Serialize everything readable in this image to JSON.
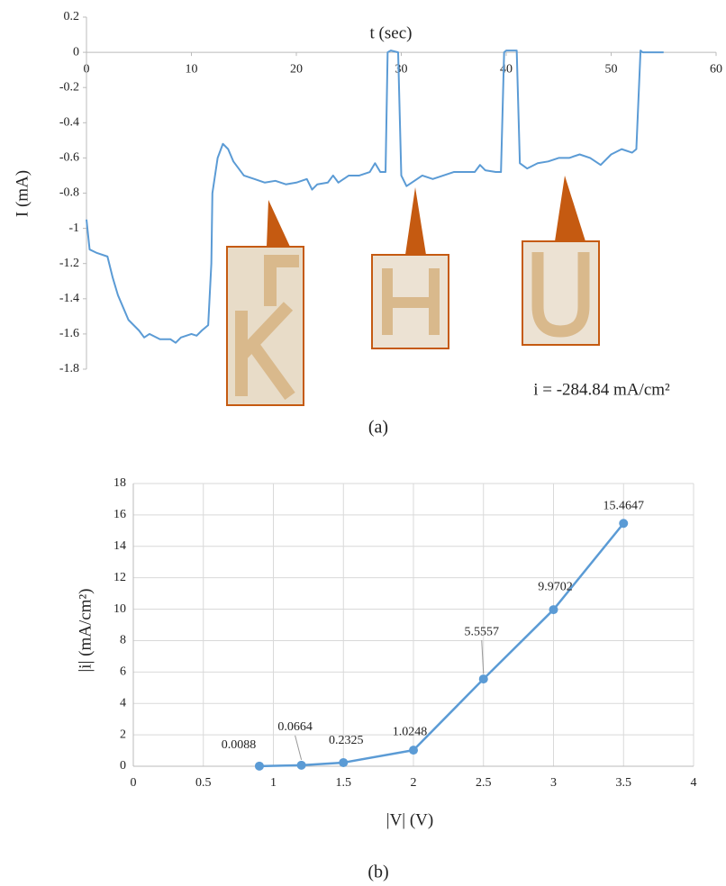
{
  "chart_data": [
    {
      "type": "line",
      "x_label": "t (sec)",
      "y_label": "I (mA)",
      "annotation": "i = -284.84 mA/cm²",
      "caption": "(a)",
      "xlim": [
        0,
        60
      ],
      "xticks": [
        0,
        10,
        20,
        30,
        40,
        50,
        60
      ],
      "ylim": [
        -1.8,
        0.2
      ],
      "yticks": [
        0.2,
        0,
        -0.2,
        -0.4,
        -0.6,
        -0.8,
        -1,
        -1.2,
        -1.4,
        -1.6,
        -1.8
      ],
      "grid": false,
      "series": [
        {
          "color": "#5b9bd5",
          "x": [
            0,
            0.3,
            1,
            2,
            2.5,
            3,
            3.5,
            4,
            5,
            5.5,
            6,
            7,
            8,
            8.5,
            9,
            10,
            10.5,
            11,
            11.6,
            11.9,
            12,
            12.5,
            13,
            13.5,
            14,
            15,
            16,
            17,
            18,
            19,
            20,
            21,
            21.5,
            22,
            23,
            23.5,
            24,
            25,
            26,
            27,
            27.5,
            28,
            28.5,
            28.7,
            29,
            29.7,
            30,
            30.5,
            31,
            32,
            33,
            34,
            35,
            36,
            37,
            37.5,
            38,
            39,
            39.5,
            39.8,
            40,
            41,
            41.3,
            42,
            43,
            44,
            45,
            46,
            47,
            48,
            49,
            50,
            51,
            52,
            52.4,
            52.8,
            53,
            55
          ],
          "values": [
            -0.95,
            -1.12,
            -1.14,
            -1.16,
            -1.28,
            -1.38,
            -1.45,
            -1.52,
            -1.58,
            -1.62,
            -1.6,
            -1.63,
            -1.63,
            -1.65,
            -1.62,
            -1.6,
            -1.61,
            -1.58,
            -1.55,
            -1.2,
            -0.8,
            -0.6,
            -0.52,
            -0.55,
            -0.62,
            -0.7,
            -0.72,
            -0.74,
            -0.73,
            -0.75,
            -0.74,
            -0.72,
            -0.78,
            -0.75,
            -0.74,
            -0.7,
            -0.74,
            -0.7,
            -0.7,
            -0.68,
            -0.63,
            -0.68,
            -0.68,
            0,
            0.01,
            0,
            -0.7,
            -0.76,
            -0.74,
            -0.7,
            -0.72,
            -0.7,
            -0.68,
            -0.68,
            -0.68,
            -0.64,
            -0.67,
            -0.68,
            -0.68,
            0,
            0.01,
            0.01,
            -0.63,
            -0.66,
            -0.63,
            -0.62,
            -0.6,
            -0.6,
            -0.58,
            -0.6,
            -0.64,
            -0.58,
            -0.55,
            -0.57,
            -0.55,
            0.01,
            0,
            0
          ]
        }
      ]
    },
    {
      "type": "line",
      "x_label": "|V| (V)",
      "y_label": "|i| (mA/cm²)",
      "caption": "(b)",
      "xlim": [
        0,
        4
      ],
      "xticks": [
        0,
        0.5,
        1,
        1.5,
        2,
        2.5,
        3,
        3.5,
        4
      ],
      "ylim": [
        0,
        18
      ],
      "yticks": [
        0,
        2,
        4,
        6,
        8,
        10,
        12,
        14,
        16,
        18
      ],
      "grid": true,
      "markers": true,
      "data_labels": true,
      "series": [
        {
          "color": "#5b9bd5",
          "x": [
            0.9,
            1.2,
            1.5,
            2,
            2.5,
            3,
            3.5
          ],
          "values": [
            0.0088,
            0.0664,
            0.2325,
            1.0248,
            5.5557,
            9.9702,
            15.4647
          ]
        }
      ]
    }
  ]
}
